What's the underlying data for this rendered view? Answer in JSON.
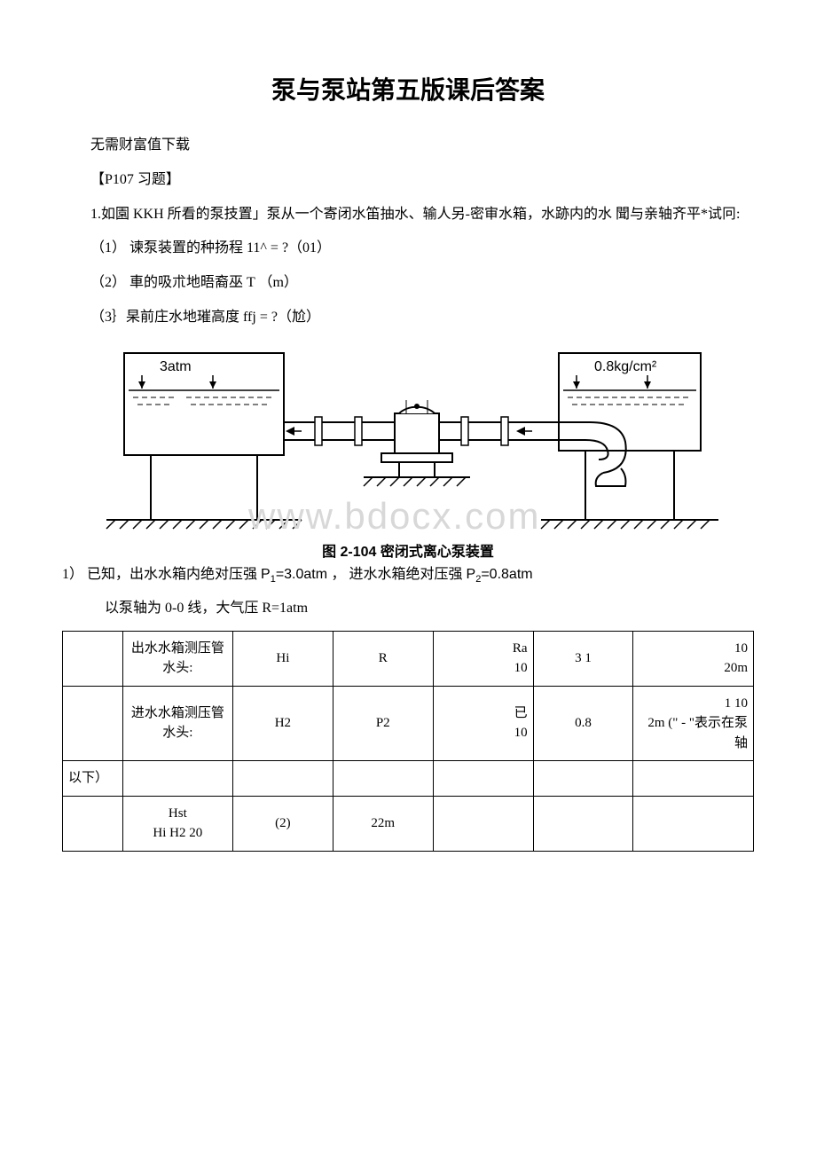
{
  "title": "泵与泵站第五版课后答案",
  "subtitle": "无需财富值下载",
  "exercise_header": "【P107 习题】",
  "problem_text": "1.如園 KKH 所看的泵技置」泵从一个寄闭水笛抽水、输人另-密审水箱，水跡内的水 聞与亲轴齐平*试冋:",
  "q1": "（1） 谏泵装置的种扬程 11^ = ?（01）",
  "q2": "（2） 車的吸朮地晤裔巫 T （m）",
  "q3": "（3｝杲前庄水地璀高度 ffj = ?（尬）",
  "diagram": {
    "left_label": "3atm",
    "right_label": "0.8kg/cm²",
    "watermark": "www.bdocx.com",
    "caption": "图 2-104   密闭式离心泵装置",
    "stroke": "#000000",
    "background": "#ffffff"
  },
  "answer1_prefix": "1）   已知，出水水箱内绝对压强     ",
  "answer1_p1_label": "P",
  "answer1_p1_sub": "1",
  "answer1_p1_val": "=3.0atm ",
  "answer1_mid": "， 进水水箱绝对压强    ",
  "answer1_p2_label": "P",
  "answer1_p2_sub": "2",
  "answer1_p2_val": "=0.8atm",
  "answer1_line2": "以泵轴为 0-0 线，大气压 R=1atm",
  "table": {
    "rows": [
      [
        "",
        "出水水箱测压管水头:",
        "Hi",
        "R",
        "Ra\n10",
        "3 1",
        "10\n20m"
      ],
      [
        "",
        "进水水箱测压管水头:",
        "H2",
        "P2",
        "已\n10",
        "0.8",
        "1 10\n2m (\" - \"表示在泵轴"
      ],
      [
        "以下）",
        "",
        "",
        "",
        "",
        "",
        ""
      ],
      [
        "",
        "Hst\nHi H2 20",
        "(2)",
        "22m",
        "",
        "",
        ""
      ]
    ],
    "col_widths": [
      "60px",
      "110px",
      "100px",
      "100px",
      "100px",
      "100px",
      "120px"
    ]
  }
}
